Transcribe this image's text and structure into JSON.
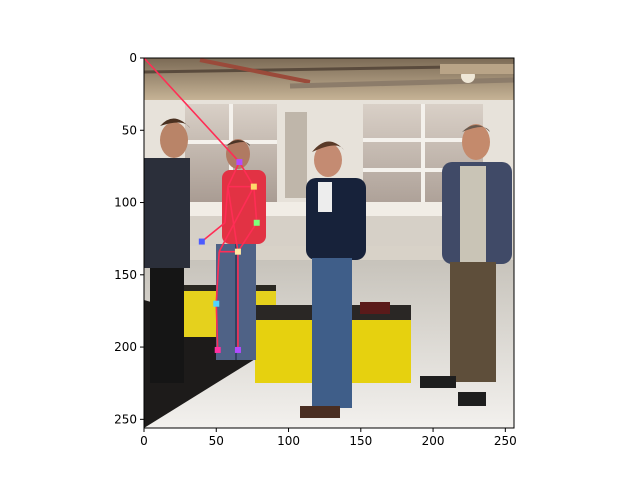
{
  "figure": {
    "axes": {
      "x_ticks": [
        0,
        50,
        100,
        150,
        200,
        250
      ],
      "y_ticks": [
        0,
        50,
        100,
        150,
        200,
        250
      ],
      "xlim": [
        0,
        256
      ],
      "ylim": [
        256,
        0
      ]
    }
  },
  "chart_data": {
    "type": "scatter",
    "xlim": [
      0,
      256
    ],
    "ylim": [
      256,
      0
    ],
    "grid": false,
    "keypoints": [
      {
        "x": 66,
        "y": 72,
        "color": "#b24bff"
      },
      {
        "x": 76,
        "y": 89,
        "color": "#ffd86b"
      },
      {
        "x": 78,
        "y": 114,
        "color": "#7dff7a"
      },
      {
        "x": 40,
        "y": 127,
        "color": "#4b5bff"
      },
      {
        "x": 65,
        "y": 134,
        "color": "#ffe7a3"
      },
      {
        "x": 50,
        "y": 170,
        "color": "#4fd6ff"
      },
      {
        "x": 51,
        "y": 202,
        "color": "#ff2fa1"
      },
      {
        "x": 65,
        "y": 202,
        "color": "#b14bff"
      }
    ],
    "skeleton_lines": [
      {
        "x1": 0,
        "y1": 0,
        "x2": 66,
        "y2": 72
      },
      {
        "x1": 66,
        "y1": 72,
        "x2": 76,
        "y2": 89
      },
      {
        "x1": 66,
        "y1": 72,
        "x2": 58,
        "y2": 89
      },
      {
        "x1": 58,
        "y1": 89,
        "x2": 76,
        "y2": 89
      },
      {
        "x1": 76,
        "y1": 89,
        "x2": 78,
        "y2": 114
      },
      {
        "x1": 58,
        "y1": 89,
        "x2": 56,
        "y2": 114
      },
      {
        "x1": 56,
        "y1": 114,
        "x2": 40,
        "y2": 127
      },
      {
        "x1": 78,
        "y1": 114,
        "x2": 65,
        "y2": 134
      },
      {
        "x1": 58,
        "y1": 89,
        "x2": 65,
        "y2": 134
      },
      {
        "x1": 76,
        "y1": 89,
        "x2": 52,
        "y2": 134
      },
      {
        "x1": 52,
        "y1": 134,
        "x2": 65,
        "y2": 134
      },
      {
        "x1": 52,
        "y1": 134,
        "x2": 50,
        "y2": 170
      },
      {
        "x1": 50,
        "y1": 170,
        "x2": 51,
        "y2": 202
      },
      {
        "x1": 65,
        "y1": 134,
        "x2": 65,
        "y2": 202
      }
    ],
    "skeleton_color": "#ff2d55"
  }
}
